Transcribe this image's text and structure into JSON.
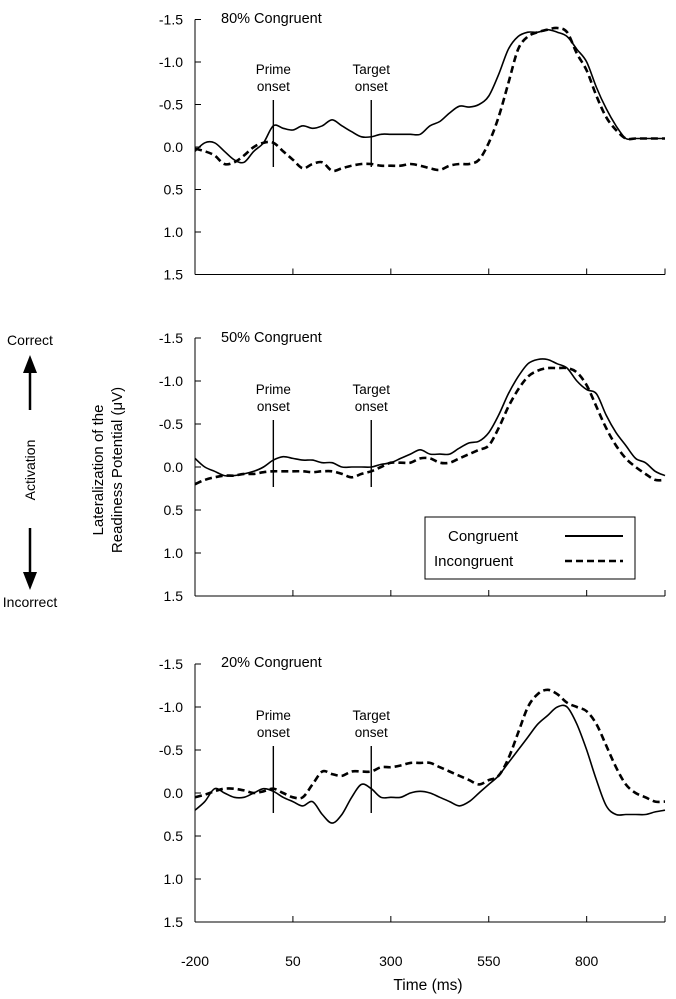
{
  "figure": {
    "xlabel": "Time (ms)",
    "ylabel_line1": "Lateralization of the",
    "ylabel_line2": "Readiness Potential (μV)",
    "side_top": "Correct",
    "side_middle": "Activation",
    "side_bottom": "Incorrect",
    "legend": {
      "congruent": "Congruent",
      "incongruent": "Incongruent"
    },
    "prime_label": [
      "Prime",
      "onset"
    ],
    "target_label": [
      "Target",
      "onset"
    ],
    "y_tick_labels": [
      "-1.5",
      "-1.0",
      "-0.5",
      "0.0",
      "0.5",
      "1.0",
      "1.5"
    ],
    "x_tick_labels": [
      "-200",
      "50",
      "300",
      "550",
      "800"
    ]
  },
  "chart_data": [
    {
      "type": "line",
      "title": "80% Congruent",
      "xlabel": "Time (ms)",
      "ylabel": "Lateralization of the Readiness Potential (μV)",
      "xlim": [
        -200,
        1000
      ],
      "ylim": [
        -1.5,
        1.5
      ],
      "y_reversed": true,
      "onsets": {
        "prime": 0,
        "target": 250
      },
      "series": [
        {
          "name": "Congruent",
          "style": "solid",
          "x": [
            -200,
            -175,
            -150,
            -125,
            -100,
            -75,
            -50,
            -25,
            0,
            25,
            50,
            75,
            100,
            125,
            150,
            175,
            200,
            225,
            250,
            275,
            300,
            325,
            350,
            375,
            400,
            425,
            450,
            475,
            500,
            525,
            550,
            575,
            600,
            625,
            650,
            675,
            700,
            725,
            750,
            775,
            800,
            825,
            850,
            875,
            900,
            925,
            950,
            975,
            1000
          ],
          "y": [
            0.05,
            -0.05,
            -0.05,
            0.05,
            0.15,
            0.18,
            0.05,
            -0.05,
            -0.25,
            -0.22,
            -0.2,
            -0.25,
            -0.22,
            -0.25,
            -0.32,
            -0.25,
            -0.18,
            -0.12,
            -0.12,
            -0.15,
            -0.15,
            -0.15,
            -0.15,
            -0.15,
            -0.25,
            -0.3,
            -0.4,
            -0.48,
            -0.47,
            -0.5,
            -0.6,
            -0.85,
            -1.15,
            -1.3,
            -1.35,
            -1.35,
            -1.38,
            -1.35,
            -1.3,
            -1.15,
            -1.0,
            -0.7,
            -0.45,
            -0.25,
            -0.1,
            -0.1,
            -0.1,
            -0.1,
            -0.1
          ]
        },
        {
          "name": "Incongruent",
          "style": "dashed",
          "x": [
            -200,
            -175,
            -150,
            -125,
            -100,
            -75,
            -50,
            -25,
            0,
            25,
            50,
            75,
            100,
            125,
            150,
            175,
            200,
            225,
            250,
            275,
            300,
            325,
            350,
            375,
            400,
            425,
            450,
            475,
            500,
            525,
            550,
            575,
            600,
            625,
            650,
            675,
            700,
            725,
            750,
            775,
            800,
            825,
            850,
            875,
            900,
            925,
            950,
            975,
            1000
          ],
          "y": [
            0.02,
            0.05,
            0.1,
            0.2,
            0.18,
            0.1,
            0.0,
            -0.05,
            -0.05,
            0.05,
            0.15,
            0.25,
            0.2,
            0.18,
            0.28,
            0.25,
            0.22,
            0.2,
            0.2,
            0.22,
            0.22,
            0.22,
            0.2,
            0.22,
            0.25,
            0.27,
            0.22,
            0.2,
            0.2,
            0.15,
            -0.05,
            -0.35,
            -0.75,
            -1.15,
            -1.3,
            -1.35,
            -1.38,
            -1.4,
            -1.35,
            -1.1,
            -0.9,
            -0.6,
            -0.35,
            -0.2,
            -0.1,
            -0.1,
            -0.1,
            -0.1,
            -0.1
          ]
        }
      ]
    },
    {
      "type": "line",
      "title": "50% Congruent",
      "xlabel": "Time (ms)",
      "ylabel": "Lateralization of the Readiness Potential (μV)",
      "xlim": [
        -200,
        1000
      ],
      "ylim": [
        -1.5,
        1.5
      ],
      "y_reversed": true,
      "onsets": {
        "prime": 0,
        "target": 250
      },
      "series": [
        {
          "name": "Congruent",
          "style": "solid",
          "x": [
            -200,
            -175,
            -150,
            -125,
            -100,
            -75,
            -50,
            -25,
            0,
            25,
            50,
            75,
            100,
            125,
            150,
            175,
            200,
            225,
            250,
            275,
            300,
            325,
            350,
            375,
            400,
            425,
            450,
            475,
            500,
            525,
            550,
            575,
            600,
            625,
            650,
            675,
            700,
            725,
            750,
            775,
            800,
            825,
            850,
            875,
            900,
            925,
            950,
            975,
            1000
          ],
          "y": [
            -0.1,
            0.0,
            0.05,
            0.1,
            0.1,
            0.08,
            0.05,
            0.0,
            -0.08,
            -0.12,
            -0.1,
            -0.08,
            -0.08,
            -0.05,
            -0.05,
            0.0,
            0.0,
            0.0,
            0.0,
            -0.03,
            -0.05,
            -0.1,
            -0.15,
            -0.2,
            -0.15,
            -0.15,
            -0.15,
            -0.22,
            -0.28,
            -0.3,
            -0.4,
            -0.6,
            -0.85,
            -1.05,
            -1.2,
            -1.25,
            -1.25,
            -1.2,
            -1.15,
            -1.0,
            -0.9,
            -0.85,
            -0.6,
            -0.4,
            -0.25,
            -0.1,
            -0.05,
            0.05,
            0.1
          ]
        },
        {
          "name": "Incongruent",
          "style": "dashed",
          "x": [
            -200,
            -175,
            -150,
            -125,
            -100,
            -75,
            -50,
            -25,
            0,
            25,
            50,
            75,
            100,
            125,
            150,
            175,
            200,
            225,
            250,
            275,
            300,
            325,
            350,
            375,
            400,
            425,
            450,
            475,
            500,
            525,
            550,
            575,
            600,
            625,
            650,
            675,
            700,
            725,
            750,
            775,
            800,
            825,
            850,
            875,
            900,
            925,
            950,
            975,
            1000
          ],
          "y": [
            0.2,
            0.15,
            0.12,
            0.1,
            0.1,
            0.08,
            0.08,
            0.06,
            0.05,
            0.05,
            0.05,
            0.05,
            0.06,
            0.05,
            0.05,
            0.08,
            0.12,
            0.08,
            0.05,
            0.0,
            -0.05,
            -0.05,
            -0.05,
            -0.1,
            -0.1,
            -0.05,
            -0.05,
            -0.1,
            -0.15,
            -0.2,
            -0.25,
            -0.45,
            -0.7,
            -0.9,
            -1.05,
            -1.12,
            -1.15,
            -1.15,
            -1.15,
            -1.1,
            -0.95,
            -0.7,
            -0.45,
            -0.25,
            -0.1,
            0.0,
            0.08,
            0.15,
            0.15
          ]
        }
      ]
    },
    {
      "type": "line",
      "title": "20% Congruent",
      "xlabel": "Time (ms)",
      "ylabel": "Lateralization of the Readiness Potential (μV)",
      "xlim": [
        -200,
        1000
      ],
      "ylim": [
        -1.5,
        1.5
      ],
      "y_reversed": true,
      "onsets": {
        "prime": 0,
        "target": 250
      },
      "series": [
        {
          "name": "Congruent",
          "style": "solid",
          "x": [
            -200,
            -175,
            -150,
            -125,
            -100,
            -75,
            -50,
            -25,
            0,
            25,
            50,
            75,
            100,
            125,
            150,
            175,
            200,
            225,
            250,
            275,
            300,
            325,
            350,
            375,
            400,
            425,
            450,
            475,
            500,
            525,
            550,
            575,
            600,
            625,
            650,
            675,
            700,
            725,
            750,
            775,
            800,
            825,
            850,
            875,
            900,
            925,
            950,
            975,
            1000
          ],
          "y": [
            0.2,
            0.1,
            -0.05,
            0.0,
            0.05,
            0.05,
            0.0,
            -0.05,
            -0.02,
            0.05,
            0.1,
            0.15,
            0.1,
            0.25,
            0.35,
            0.25,
            0.05,
            -0.1,
            -0.05,
            0.05,
            0.05,
            0.05,
            0.0,
            -0.02,
            0.0,
            0.05,
            0.1,
            0.15,
            0.1,
            0.0,
            -0.1,
            -0.2,
            -0.35,
            -0.5,
            -0.65,
            -0.8,
            -0.9,
            -1.0,
            -1.0,
            -0.8,
            -0.5,
            -0.15,
            0.15,
            0.25,
            0.25,
            0.25,
            0.25,
            0.22,
            0.2
          ]
        },
        {
          "name": "Incongruent",
          "style": "dashed",
          "x": [
            -200,
            -175,
            -150,
            -125,
            -100,
            -75,
            -50,
            -25,
            0,
            25,
            50,
            75,
            100,
            125,
            150,
            175,
            200,
            225,
            250,
            275,
            300,
            325,
            350,
            375,
            400,
            425,
            450,
            475,
            500,
            525,
            550,
            575,
            600,
            625,
            650,
            675,
            700,
            725,
            750,
            775,
            800,
            825,
            850,
            875,
            900,
            925,
            950,
            975,
            1000
          ],
          "y": [
            0.05,
            0.02,
            -0.02,
            -0.05,
            -0.05,
            -0.03,
            0.0,
            -0.02,
            -0.05,
            0.0,
            0.05,
            0.05,
            -0.1,
            -0.25,
            -0.22,
            -0.2,
            -0.25,
            -0.25,
            -0.25,
            -0.3,
            -0.3,
            -0.32,
            -0.35,
            -0.35,
            -0.35,
            -0.3,
            -0.25,
            -0.2,
            -0.15,
            -0.1,
            -0.15,
            -0.2,
            -0.4,
            -0.7,
            -1.0,
            -1.15,
            -1.2,
            -1.15,
            -1.05,
            -1.0,
            -0.95,
            -0.8,
            -0.55,
            -0.3,
            -0.1,
            0.0,
            0.05,
            0.1,
            0.1
          ]
        }
      ]
    }
  ]
}
